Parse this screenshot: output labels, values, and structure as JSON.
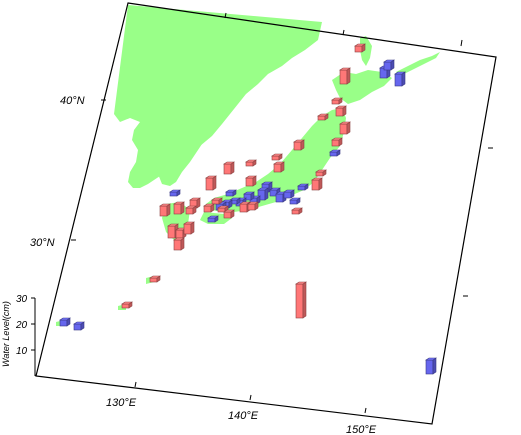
{
  "map": {
    "land_color": "#99ff88",
    "ocean_color": "#ffffff",
    "frame_color": "#000000",
    "lon_range": [
      122,
      156
    ],
    "lat_range": [
      22,
      48
    ]
  },
  "axes": {
    "lat_labels": [
      "40°N",
      "30°N"
    ],
    "lon_labels": [
      "130°E",
      "140°E",
      "150°E"
    ]
  },
  "scale": {
    "title": "Water Level(cm)",
    "ticks": [
      "10",
      "20",
      "30"
    ]
  },
  "colors": {
    "positive": "#ff7777",
    "negative": "#6666ee"
  }
}
